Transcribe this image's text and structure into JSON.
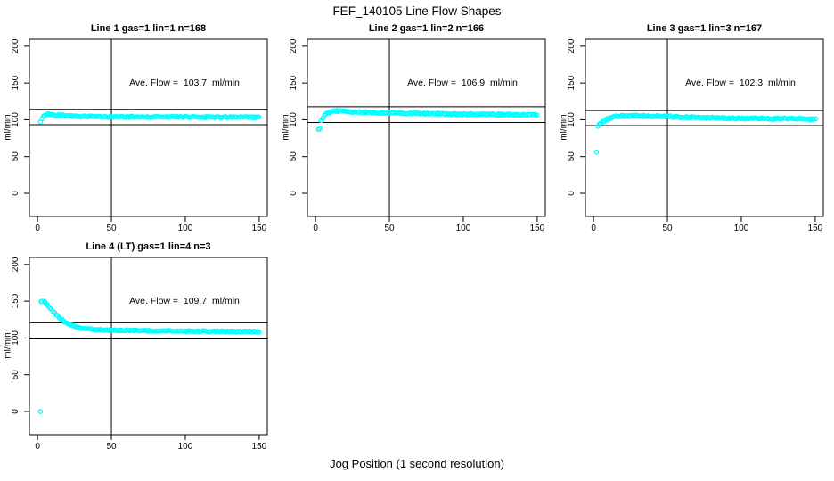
{
  "title": "FEF_140105  Line Flow Shapes",
  "xlabel": "Jog Position (1 second resolution)",
  "colors": {
    "points": "#00FFFF",
    "axis": "#000000",
    "background": "#FFFFFF"
  },
  "chart_data": [
    {
      "type": "scatter",
      "title": "Line 1 gas=1 lin=1 n=168",
      "ylabel": "ml/min",
      "annotation": "Ave. Flow =  103.7  ml/min",
      "ave_flow": 103.7,
      "n": 168,
      "x_ticks": [
        0,
        50,
        100,
        150
      ],
      "y_ticks": [
        0,
        50,
        100,
        150,
        200
      ],
      "xlim": [
        -5.5,
        155.5
      ],
      "ylim": [
        -31.5,
        209.5
      ],
      "vline_x": 50,
      "hlines": [
        114.1,
        93.3
      ],
      "outliers": [
        [
          2,
          97
        ]
      ],
      "band_keypoints": [
        [
          3,
          101
        ],
        [
          4,
          104.5
        ],
        [
          6,
          107
        ],
        [
          8,
          107.5
        ],
        [
          12,
          106.5
        ],
        [
          20,
          105.5
        ],
        [
          30,
          104.5
        ],
        [
          45,
          104
        ],
        [
          70,
          103.8
        ],
        [
          100,
          103.8
        ],
        [
          130,
          103.4
        ],
        [
          150,
          103.2
        ]
      ],
      "band_samples": 167,
      "jitter": 0.9
    },
    {
      "type": "scatter",
      "title": "Line 2 gas=1 lin=2 n=166",
      "ylabel": "ml/min",
      "annotation": "Ave. Flow =  106.9  ml/min",
      "ave_flow": 106.9,
      "n": 166,
      "x_ticks": [
        0,
        50,
        100,
        150
      ],
      "y_ticks": [
        0,
        50,
        100,
        150,
        200
      ],
      "xlim": [
        -5.5,
        155.5
      ],
      "ylim": [
        -31.5,
        209.5
      ],
      "vline_x": 50,
      "hlines": [
        117.6,
        96.2
      ],
      "outliers": [
        [
          2,
          87
        ],
        [
          3,
          88
        ]
      ],
      "band_keypoints": [
        [
          4,
          99
        ],
        [
          5,
          103
        ],
        [
          7,
          107.5
        ],
        [
          10,
          110.5
        ],
        [
          14,
          111.8
        ],
        [
          20,
          111.3
        ],
        [
          30,
          110.3
        ],
        [
          45,
          109.5
        ],
        [
          70,
          108.6
        ],
        [
          100,
          107.6
        ],
        [
          130,
          106.9
        ],
        [
          150,
          106.6
        ]
      ],
      "band_samples": 164,
      "jitter": 0.9
    },
    {
      "type": "scatter",
      "title": "Line 3 gas=1 lin=3 n=167",
      "ylabel": "ml/min",
      "annotation": "Ave. Flow =  102.3  ml/min",
      "ave_flow": 102.3,
      "n": 167,
      "x_ticks": [
        0,
        50,
        100,
        150
      ],
      "y_ticks": [
        0,
        50,
        100,
        150,
        200
      ],
      "xlim": [
        -5.5,
        155.5
      ],
      "ylim": [
        -31.5,
        209.5
      ],
      "vline_x": 50,
      "hlines": [
        112.5,
        92.1
      ],
      "outliers": [
        [
          2,
          56
        ],
        [
          3,
          91
        ]
      ],
      "band_keypoints": [
        [
          4,
          94.5
        ],
        [
          6,
          97.5
        ],
        [
          9,
          100.5
        ],
        [
          13,
          103.5
        ],
        [
          18,
          105.3
        ],
        [
          30,
          105.2
        ],
        [
          50,
          104.6
        ],
        [
          58,
          103.6
        ],
        [
          75,
          102.8
        ],
        [
          95,
          101.8
        ],
        [
          120,
          101.4
        ],
        [
          150,
          101.1
        ]
      ],
      "band_samples": 165,
      "jitter": 1.0
    },
    {
      "type": "scatter",
      "title": "Line 4 (LT) gas=1 lin=4 n=3",
      "ylabel": "ml/min",
      "annotation": "Ave. Flow =  109.7  ml/min",
      "ave_flow": 109.7,
      "n": 3,
      "x_ticks": [
        0,
        50,
        100,
        150
      ],
      "y_ticks": [
        0,
        50,
        100,
        150,
        200
      ],
      "xlim": [
        -5.5,
        155.5
      ],
      "ylim": [
        -31.5,
        209.5
      ],
      "vline_x": 50,
      "hlines": [
        120.7,
        98.7
      ],
      "outliers": [
        [
          2,
          0
        ]
      ],
      "band_keypoints": [
        [
          2.5,
          149.5
        ],
        [
          4,
          150.5
        ],
        [
          5,
          149
        ],
        [
          7,
          144.5
        ],
        [
          9,
          139.5
        ],
        [
          12,
          133
        ],
        [
          15,
          127.5
        ],
        [
          18,
          122.5
        ],
        [
          21,
          118.5
        ],
        [
          25,
          115.5
        ],
        [
          30,
          113
        ],
        [
          36,
          111.8
        ],
        [
          45,
          110.8
        ],
        [
          60,
          110.2
        ],
        [
          80,
          109.6
        ],
        [
          100,
          109.3
        ],
        [
          125,
          109
        ],
        [
          150,
          108.6
        ]
      ],
      "band_samples": 150,
      "jitter": 0.7
    }
  ]
}
